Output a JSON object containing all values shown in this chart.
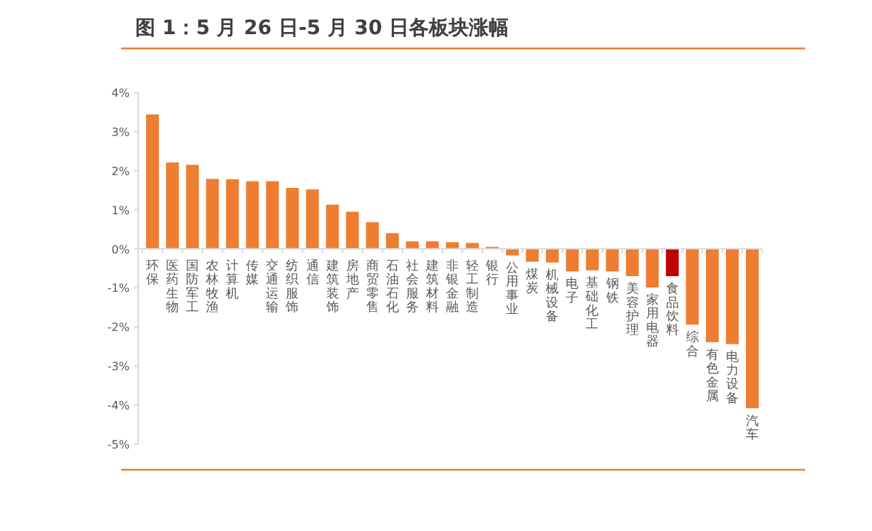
{
  "chart_data": {
    "type": "bar",
    "title": "图 1：5 月 26 日-5 月 30 日各板块涨幅",
    "categories": [
      "环保",
      "医药生物",
      "国防军工",
      "农林牧渔",
      "计算机",
      "传媒",
      "交通运输",
      "纺织服饰",
      "通信",
      "建筑装饰",
      "房地产",
      "商贸零售",
      "石油石化",
      "社会服务",
      "建筑材料",
      "非银金融",
      "轻工制造",
      "银行",
      "公用事业",
      "煤炭",
      "机械设备",
      "电子",
      "基础化工",
      "钢铁",
      "美容护理",
      "家用电器",
      "食品饮料",
      "综合",
      "有色金属",
      "电力设备",
      "汽车"
    ],
    "values": [
      3.44,
      2.21,
      2.15,
      1.79,
      1.78,
      1.73,
      1.73,
      1.56,
      1.52,
      1.13,
      0.95,
      0.68,
      0.4,
      0.19,
      0.19,
      0.17,
      0.15,
      0.05,
      -0.17,
      -0.33,
      -0.35,
      -0.58,
      -0.55,
      -0.58,
      -0.7,
      -0.99,
      -0.7,
      -1.94,
      -2.39,
      -2.44,
      -4.08
    ],
    "colors": [
      "#ed7d31",
      "#ed7d31",
      "#ed7d31",
      "#ed7d31",
      "#ed7d31",
      "#ed7d31",
      "#ed7d31",
      "#ed7d31",
      "#ed7d31",
      "#ed7d31",
      "#ed7d31",
      "#ed7d31",
      "#ed7d31",
      "#ed7d31",
      "#ed7d31",
      "#ed7d31",
      "#ed7d31",
      "#ed7d31",
      "#ed7d31",
      "#ed7d31",
      "#ed7d31",
      "#ed7d31",
      "#ed7d31",
      "#ed7d31",
      "#ed7d31",
      "#ed7d31",
      "#c00000",
      "#ed7d31",
      "#ed7d31",
      "#ed7d31",
      "#ed7d31"
    ],
    "ylim": [
      -5,
      4
    ],
    "yticks": [
      {
        "value": 4,
        "label": "4%"
      },
      {
        "value": 3,
        "label": "3%"
      },
      {
        "value": 2,
        "label": "2%"
      },
      {
        "value": 1,
        "label": "1%"
      },
      {
        "value": 0,
        "label": "0%"
      },
      {
        "value": -1,
        "label": "-1%"
      },
      {
        "value": -2,
        "label": "-2%"
      },
      {
        "value": -3,
        "label": "-3%"
      },
      {
        "value": -4,
        "label": "-4%"
      },
      {
        "value": -5,
        "label": "-5%"
      }
    ]
  }
}
